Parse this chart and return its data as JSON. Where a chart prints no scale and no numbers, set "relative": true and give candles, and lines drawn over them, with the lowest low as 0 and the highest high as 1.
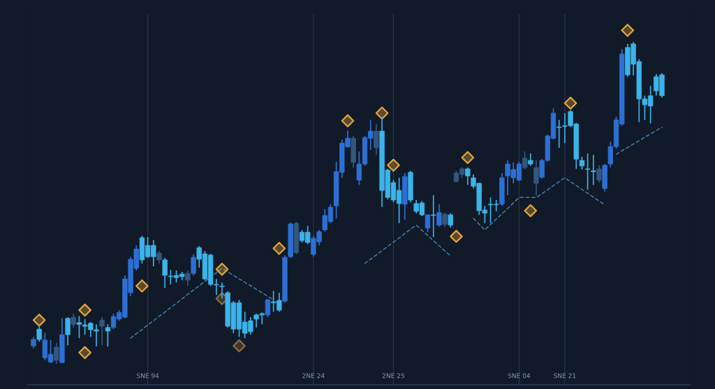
{
  "chart_data": {
    "type": "candlestick",
    "relative": true,
    "categories": [
      null,
      null,
      null,
      null,
      null,
      null,
      null,
      null,
      null,
      null,
      null,
      null,
      null,
      null,
      null,
      null,
      null,
      null,
      null,
      null,
      "SNE 94",
      null,
      null,
      null,
      null,
      null,
      null,
      null,
      null,
      null,
      null,
      null,
      null,
      null,
      null,
      null,
      null,
      null,
      null,
      null,
      null,
      null,
      null,
      null,
      null,
      null,
      null,
      null,
      null,
      "2NE 24",
      null,
      null,
      null,
      null,
      null,
      null,
      null,
      null,
      null,
      null,
      null,
      null,
      null,
      "2NE 25",
      null,
      null,
      null,
      null,
      null,
      null,
      null,
      null,
      null,
      null,
      null,
      null,
      null,
      null,
      null,
      null,
      null,
      null,
      null,
      null,
      null,
      "SNE 04",
      null,
      null,
      null,
      null,
      null,
      null,
      null,
      "SNE 21",
      null,
      null,
      null,
      null,
      null,
      null,
      null,
      null,
      null,
      null,
      null,
      null,
      null,
      null,
      null,
      null,
      null
    ],
    "ohlc": [
      [
        0.056,
        0.084,
        0.048,
        0.076
      ],
      [
        0.108,
        0.121,
        0.069,
        0.076
      ],
      [
        0.019,
        0.097,
        0.011,
        0.074
      ],
      [
        0.006,
        0.074,
        0.002,
        0.03
      ],
      [
        0.011,
        0.065,
        0,
        0.052
      ],
      [
        0.004,
        0.141,
        0.004,
        0.091
      ],
      [
        0.141,
        0.145,
        0.058,
        0.091
      ],
      [
        0.123,
        0.156,
        0.113,
        0.145
      ],
      [
        0.128,
        0.149,
        0.08,
        0.123
      ],
      [
        0.121,
        0.139,
        0.091,
        0.117
      ],
      [
        0.126,
        0.13,
        0.084,
        0.106
      ],
      [
        0.106,
        0.123,
        0.054,
        0.102
      ],
      [
        0.117,
        0.145,
        0.058,
        0.136
      ],
      [
        0.113,
        0.123,
        0.054,
        0.102
      ],
      [
        0.113,
        0.156,
        0.108,
        0.147
      ],
      [
        0.139,
        0.167,
        0.134,
        0.16
      ],
      [
        0.145,
        0.275,
        0.141,
        0.264
      ],
      [
        0.221,
        0.333,
        0.21,
        0.325
      ],
      [
        0.297,
        0.368,
        0.29,
        0.357
      ],
      [
        0.392,
        0.398,
        0.312,
        0.323
      ],
      [
        0.368,
        0.394,
        0.329,
        0.333
      ],
      [
        0.368,
        0.385,
        0.303,
        0.333
      ],
      [
        0.323,
        0.351,
        0.312,
        0.344
      ],
      [
        0.323,
        0.329,
        0.236,
        0.275
      ],
      [
        0.273,
        0.292,
        0.247,
        0.271
      ],
      [
        0.275,
        0.29,
        0.253,
        0.268
      ],
      [
        0.279,
        0.286,
        0.26,
        0.271
      ],
      [
        0.26,
        0.29,
        0.242,
        0.281
      ],
      [
        0.281,
        0.34,
        0.275,
        0.331
      ],
      [
        0.361,
        0.366,
        0.299,
        0.325
      ],
      [
        0.342,
        0.351,
        0.26,
        0.264
      ],
      [
        0.338,
        0.342,
        0.242,
        0.247
      ],
      [
        0.247,
        0.264,
        0.214,
        0.245
      ],
      [
        0.242,
        0.253,
        0.203,
        0.24
      ],
      [
        0.221,
        0.225,
        0.113,
        0.117
      ],
      [
        0.19,
        0.195,
        0.095,
        0.108
      ],
      [
        0.19,
        0.199,
        0.084,
        0.108
      ],
      [
        0.13,
        0.162,
        0.08,
        0.095
      ],
      [
        0.134,
        0.145,
        0.091,
        0.1
      ],
      [
        0.152,
        0.156,
        0.113,
        0.139
      ],
      [
        0.156,
        0.16,
        0.123,
        0.152
      ],
      [
        0.152,
        0.203,
        0.145,
        0.199
      ],
      [
        0.193,
        0.227,
        0.162,
        0.19
      ],
      [
        0.197,
        0.221,
        0.162,
        0.167
      ],
      [
        0.195,
        0.338,
        0.19,
        0.331
      ],
      [
        0.333,
        0.439,
        0.329,
        0.435
      ],
      [
        0.346,
        0.442,
        0.34,
        0.437
      ],
      [
        0.409,
        0.416,
        0.377,
        0.383
      ],
      [
        0.409,
        0.429,
        0.372,
        0.377
      ],
      [
        0.34,
        0.398,
        0.333,
        0.39
      ],
      [
        0.379,
        0.416,
        0.368,
        0.411
      ],
      [
        0.416,
        0.481,
        0.411,
        0.461
      ],
      [
        0.442,
        0.496,
        0.437,
        0.487
      ],
      [
        0.491,
        0.628,
        0.452,
        0.597
      ],
      [
        0.595,
        0.697,
        0.578,
        0.686
      ],
      [
        0.675,
        0.725,
        0.671,
        0.701
      ],
      [
        0.701,
        0.708,
        0.61,
        0.626
      ],
      [
        0.571,
        0.66,
        0.556,
        0.621
      ],
      [
        0.621,
        0.708,
        0.615,
        0.703
      ],
      [
        0.701,
        0.758,
        0.665,
        0.723
      ],
      [
        0.723,
        0.745,
        0.649,
        0.671
      ],
      [
        0.723,
        0.766,
        0.487,
        0.539
      ],
      [
        0.602,
        0.606,
        0.511,
        0.517
      ],
      [
        0.563,
        0.571,
        0.502,
        0.509
      ],
      [
        0.539,
        0.578,
        0.437,
        0.498
      ],
      [
        0.496,
        0.593,
        0.448,
        0.582
      ],
      [
        0.595,
        0.6,
        0.502,
        0.509
      ],
      [
        0.498,
        0.509,
        0.468,
        0.474
      ],
      [
        0.5,
        0.506,
        0.459,
        0.463
      ],
      [
        0.422,
        0.465,
        0.409,
        0.463
      ],
      [
        0.463,
        0.524,
        0.394,
        0.461
      ],
      [
        0.431,
        0.496,
        0.426,
        0.47
      ],
      [
        0.465,
        0.47,
        0.426,
        0.433
      ],
      [
        0.463,
        0.468,
        0.424,
        0.431
      ],
      [
        0.567,
        0.6,
        0.563,
        0.593
      ],
      [
        0.589,
        0.61,
        0.578,
        0.606
      ],
      [
        0.606,
        0.61,
        0.556,
        0.584
      ],
      [
        0.578,
        0.589,
        0.545,
        0.552
      ],
      [
        0.561,
        0.563,
        0.463,
        0.476
      ],
      [
        0.478,
        0.491,
        0.437,
        0.468
      ],
      [
        0.496,
        0.517,
        0.437,
        0.494
      ],
      [
        0.496,
        0.509,
        0.474,
        0.494
      ],
      [
        0.496,
        0.593,
        0.491,
        0.578
      ],
      [
        0.584,
        0.632,
        0.524,
        0.621
      ],
      [
        0.578,
        0.626,
        0.561,
        0.604
      ],
      [
        0.571,
        0.628,
        0.567,
        0.621
      ],
      [
        0.61,
        0.66,
        0.604,
        0.639
      ],
      [
        0.632,
        0.654,
        0.615,
        0.621
      ],
      [
        0.61,
        0.632,
        0.524,
        0.561
      ],
      [
        0.58,
        0.636,
        0.576,
        0.632
      ],
      [
        0.632,
        0.712,
        0.628,
        0.708
      ],
      [
        0.701,
        0.794,
        0.697,
        0.779
      ],
      [
        0.736,
        0.758,
        0.671,
        0.734
      ],
      [
        0.74,
        0.779,
        0.686,
        0.738
      ],
      [
        0.784,
        0.788,
        0.736,
        0.74
      ],
      [
        0.745,
        0.749,
        0.606,
        0.636
      ],
      [
        0.632,
        0.643,
        0.604,
        0.615
      ],
      [
        0.606,
        0.654,
        0.541,
        0.604
      ],
      [
        0.6,
        0.649,
        0.556,
        0.597
      ],
      [
        0.606,
        0.617,
        0.563,
        0.571
      ],
      [
        0.545,
        0.621,
        0.535,
        0.617
      ],
      [
        0.621,
        0.69,
        0.61,
        0.675
      ],
      [
        0.675,
        0.768,
        0.669,
        0.758
      ],
      [
        0.745,
        0.978,
        0.74,
        0.963
      ],
      [
        0.983,
        0.994,
        0.892,
        0.898
      ],
      [
        0.994,
        1,
        0.896,
        0.931
      ],
      [
        0.939,
        0.946,
        0.751,
        0.823
      ],
      [
        0.823,
        0.833,
        0.758,
        0.805
      ],
      [
        0.833,
        0.864,
        0.747,
        0.801
      ],
      [
        0.892,
        0.9,
        0.833,
        0.848
      ],
      [
        0.898,
        0.903,
        0.827,
        0.833
      ]
    ],
    "colors": [
      "#2e6fd3",
      "#3cb3e9",
      "#2e6fd3",
      "#2e6fd3",
      "#33577f",
      "#2e6fd3",
      "#3cb3e9",
      "#33577f",
      "#3cb3e9",
      "#3cb3e9",
      "#3cb3e9",
      "#3cb3e9",
      "#33577f",
      "#3cb3e9",
      "#2e6fd3",
      "#2e6fd3",
      "#2e6fd3",
      "#2e6fd3",
      "#2e6fd3",
      "#3cb3e9",
      "#3cb3e9",
      "#3cb3e9",
      "#33577f",
      "#3cb3e9",
      "#3cb3e9",
      "#3cb3e9",
      "#3cb3e9",
      "#33577f",
      "#2e6fd3",
      "#3cb3e9",
      "#3cb3e9",
      "#3cb3e9",
      "#3cb3e9",
      "#3cb3e9",
      "#3cb3e9",
      "#3cb3e9",
      "#3cb3e9",
      "#3cb3e9",
      "#3cb3e9",
      "#3cb3e9",
      "#3cb3e9",
      "#2e6fd3",
      "#3cb3e9",
      "#3cb3e9",
      "#2e6fd3",
      "#2e6fd3",
      "#33577f",
      "#3cb3e9",
      "#3cb3e9",
      "#2e6fd3",
      "#2e6fd3",
      "#2e6fd3",
      "#2e6fd3",
      "#2e6fd3",
      "#2e6fd3",
      "#2e6fd3",
      "#33577f",
      "#2e6fd3",
      "#2e6fd3",
      "#2e6fd3",
      "#33577f",
      "#3cb3e9",
      "#3cb3e9",
      "#3cb3e9",
      "#3cb3e9",
      "#2e6fd3",
      "#3cb3e9",
      "#3cb3e9",
      "#3cb3e9",
      "#2e6fd3",
      "#3cb3e9",
      "#2e6fd3",
      "#33577f",
      "#3cb3e9",
      "#33577f",
      "#33577f",
      "#3cb3e9",
      "#3cb3e9",
      "#3cb3e9",
      "#3cb3e9",
      "#3cb3e9",
      "#3cb3e9",
      "#2e6fd3",
      "#2e6fd3",
      "#2e6fd3",
      "#2e6fd3",
      "#33577f",
      "#3cb3e9",
      "#33577f",
      "#2e6fd3",
      "#2e6fd3",
      "#2e6fd3",
      "#3cb3e9",
      "#3cb3e9",
      "#3cb3e9",
      "#3cb3e9",
      "#3cb3e9",
      "#3cb3e9",
      "#3cb3e9",
      "#33577f",
      "#2e6fd3",
      "#2e6fd3",
      "#2e6fd3",
      "#2e6fd3",
      "#3cb3e9",
      "#3cb3e9",
      "#3cb3e9",
      "#3cb3e9",
      "#3cb3e9",
      "#3cb3e9",
      "#3cb3e9"
    ],
    "series": [
      {
        "type": "line",
        "color": "#3f7fb0",
        "line_style": "dashed",
        "values": [
          null,
          null,
          null,
          null,
          null,
          null,
          null,
          null,
          null,
          null,
          null,
          null,
          null,
          null,
          null,
          null,
          null,
          0.08,
          0.094,
          0.107,
          0.121,
          0.134,
          0.148,
          0.161,
          0.175,
          0.188,
          0.202,
          0.216,
          0.229,
          0.243,
          0.256,
          0.27,
          0.283,
          0.297,
          0.286,
          0.275,
          0.264,
          0.253,
          0.243,
          0.232,
          0.221,
          0.21,
          0.199,
          null,
          null,
          null,
          null,
          null,
          null,
          null,
          null,
          null,
          null,
          null,
          null,
          null,
          null,
          null,
          0.312,
          0.325,
          0.338,
          0.352,
          0.365,
          0.378,
          0.391,
          0.405,
          0.418,
          0.431,
          0.415,
          0.399,
          0.383,
          0.367,
          0.351,
          0.335,
          null,
          null,
          null,
          0.452,
          0.434,
          0.416,
          0.433,
          0.45,
          0.466,
          0.483,
          0.5,
          0.517,
          0.517,
          0.517,
          0.517,
          0.529,
          0.541,
          0.554,
          0.566,
          0.578,
          0.566,
          0.554,
          0.542,
          0.53,
          0.518,
          0.506,
          0.494,
          null,
          0.651,
          0.662,
          0.672,
          0.683,
          0.693,
          0.704,
          0.714,
          0.725,
          0.735
        ]
      },
      {
        "type": "scatter",
        "color": "#e3a43c",
        "marker": "diamond",
        "values": [
          null,
          0.136,
          null,
          null,
          null,
          null,
          null,
          null,
          null,
          0.167,
          null,
          null,
          null,
          null,
          null,
          null,
          null,
          null,
          null,
          0.242,
          null,
          null,
          null,
          null,
          null,
          null,
          null,
          null,
          null,
          null,
          null,
          null,
          null,
          0.294,
          null,
          null,
          null,
          null,
          null,
          null,
          null,
          null,
          null,
          0.359,
          null,
          null,
          null,
          null,
          null,
          null,
          null,
          null,
          null,
          null,
          null,
          0.755,
          null,
          null,
          null,
          null,
          null,
          0.779,
          null,
          0.617,
          null,
          null,
          null,
          null,
          null,
          null,
          null,
          null,
          null,
          null,
          0.396,
          null,
          0.641,
          null,
          null,
          null,
          null,
          null,
          null,
          null,
          null,
          null,
          null,
          0.476,
          null,
          null,
          null,
          null,
          null,
          null,
          0.81,
          null,
          null,
          null,
          null,
          null,
          null,
          null,
          null,
          null,
          null,
          null,
          null,
          null,
          null,
          null,
          null
        ]
      },
      {
        "type": "scatter",
        "color": "#e3a43c",
        "marker": "diamond",
        "values": [
          null,
          null,
          null,
          null,
          null,
          null,
          null,
          null,
          null,
          0.035,
          null,
          null,
          null,
          null,
          null,
          null,
          null,
          null,
          null,
          null,
          null,
          null,
          null,
          null,
          null,
          null,
          null,
          null,
          null,
          null,
          null,
          null,
          null,
          null,
          null,
          null,
          null,
          null,
          null,
          null,
          null,
          null,
          null,
          null,
          null,
          null,
          null,
          null,
          null,
          null,
          null,
          null,
          null,
          null,
          null,
          null,
          null,
          null,
          null,
          null,
          null,
          null,
          null,
          null,
          null,
          null,
          null,
          null,
          null,
          null,
          null,
          null,
          null,
          null,
          null,
          null,
          null,
          null,
          null,
          null,
          null,
          null,
          null,
          null,
          null,
          null,
          null,
          null,
          null,
          null,
          null,
          null,
          null,
          null,
          null,
          null,
          null,
          null,
          null,
          null,
          null,
          null,
          null,
          null,
          null,
          null,
          null,
          null,
          null,
          null,
          null
        ]
      },
      {
        "type": "scatter",
        "color": "#8c6a45",
        "marker": "diamond",
        "values": [
          null,
          null,
          null,
          null,
          null,
          null,
          null,
          null,
          null,
          null,
          null,
          null,
          null,
          null,
          null,
          null,
          null,
          null,
          null,
          null,
          null,
          null,
          null,
          null,
          null,
          null,
          null,
          null,
          null,
          null,
          null,
          null,
          null,
          0.203,
          null,
          null,
          0.056,
          null,
          null,
          null,
          null,
          null,
          null,
          null,
          null,
          null,
          null,
          null,
          null,
          null,
          null,
          null,
          null,
          null,
          null,
          null,
          null,
          null,
          null,
          null,
          null,
          null,
          null,
          null,
          null,
          null,
          null,
          null,
          null,
          null,
          null,
          null,
          null,
          null,
          null,
          null,
          null,
          null,
          null,
          null,
          null,
          null,
          null,
          null,
          null,
          null,
          null,
          null,
          null,
          null,
          null,
          null,
          null,
          null,
          null,
          null,
          null,
          null,
          null,
          null,
          null,
          null,
          null,
          null,
          null,
          null,
          null,
          null,
          null,
          null,
          null
        ]
      }
    ],
    "grid": "x",
    "tick_labels": "x"
  }
}
